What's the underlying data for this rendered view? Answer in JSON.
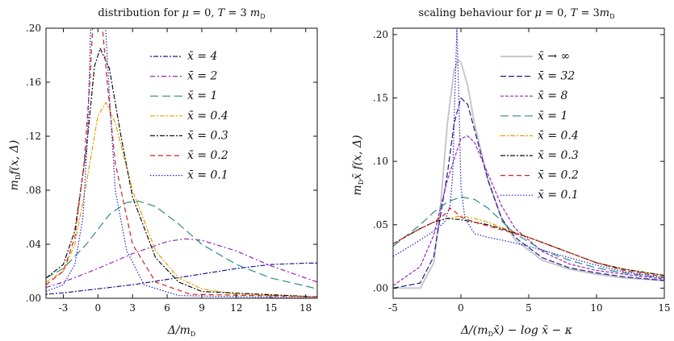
{
  "chart_data": [
    {
      "type": "line",
      "title": "distribution for μ = 0, T = 3 mD",
      "xlabel": "Δ/mD",
      "ylabel": "mD f(x, Δ)",
      "xlim": [
        -4.5,
        19
      ],
      "ylim": [
        0,
        0.2
      ],
      "xticks": [
        -3,
        0,
        3,
        6,
        9,
        12,
        15,
        18
      ],
      "yticks": [
        0.0,
        0.04,
        0.08,
        0.12,
        0.16,
        0.2
      ],
      "xtick_labels": [
        "-3",
        "0",
        "3",
        "6",
        "9",
        "12",
        "15",
        "18"
      ],
      "ytick_labels": [
        ".00",
        ".04",
        ".08",
        ".12",
        ".16",
        ".20"
      ],
      "legend_position": "top-right",
      "series": [
        {
          "name": "x̄ = 4",
          "color": "#1a1a8c",
          "dash": "2,2,6,2",
          "x": [
            -4.5,
            -3,
            0,
            3,
            6,
            9,
            12,
            15,
            18,
            19
          ],
          "y": [
            0.003,
            0.004,
            0.007,
            0.01,
            0.014,
            0.018,
            0.022,
            0.025,
            0.026,
            0.026
          ]
        },
        {
          "name": "x̄ = 2",
          "color": "#a020c0",
          "dash": "6,3,2,3",
          "x": [
            -4.5,
            -3,
            0,
            3,
            6,
            7.5,
            9,
            12,
            15,
            18,
            19
          ],
          "y": [
            0.008,
            0.012,
            0.022,
            0.033,
            0.042,
            0.044,
            0.043,
            0.035,
            0.024,
            0.015,
            0.012
          ]
        },
        {
          "name": "x̄ = 1",
          "color": "#2a8c8c",
          "dash": "10,5",
          "x": [
            -4.5,
            -3,
            -1,
            1,
            2.5,
            3.5,
            5,
            7,
            9,
            12,
            15,
            18,
            19
          ],
          "y": [
            0.015,
            0.022,
            0.04,
            0.062,
            0.071,
            0.072,
            0.068,
            0.055,
            0.04,
            0.025,
            0.015,
            0.009,
            0.007
          ]
        },
        {
          "name": "x̄ = 0.4",
          "color": "#e6a000",
          "dash": "6,2,2,2",
          "x": [
            -4.5,
            -3,
            -2,
            -1,
            0,
            0.7,
            1.5,
            3,
            5,
            7,
            9,
            12,
            19
          ],
          "y": [
            0.012,
            0.02,
            0.04,
            0.085,
            0.135,
            0.145,
            0.13,
            0.08,
            0.035,
            0.015,
            0.007,
            0.003,
            0.001
          ]
        },
        {
          "name": "x̄ = 0.3",
          "color": "#111111",
          "dash": "6,2,2,2",
          "x": [
            -4.5,
            -3,
            -2,
            -1,
            -0.3,
            0.2,
            1,
            2,
            3,
            5,
            7,
            9,
            19
          ],
          "y": [
            0.015,
            0.025,
            0.05,
            0.11,
            0.172,
            0.185,
            0.17,
            0.12,
            0.075,
            0.03,
            0.012,
            0.005,
            0.001
          ]
        },
        {
          "name": "x̄ = 0.2",
          "color": "#d42020",
          "dash": "6,4",
          "x": [
            -4.5,
            -3,
            -2,
            -1.2,
            -0.7,
            -0.4,
            0.3,
            0.8,
            1.5,
            3,
            5,
            8,
            19
          ],
          "y": [
            0.01,
            0.02,
            0.045,
            0.1,
            0.16,
            0.21,
            0.21,
            0.16,
            0.1,
            0.04,
            0.012,
            0.003,
            0.001
          ]
        },
        {
          "name": "x̄ = 0.1",
          "color": "#2020d0",
          "dash": "1.5,2",
          "x": [
            -4.5,
            -3,
            -2,
            -1.3,
            -0.9,
            -0.6,
            0.6,
            1,
            1.5,
            2.5,
            4,
            7,
            19
          ],
          "y": [
            0.005,
            0.01,
            0.025,
            0.06,
            0.12,
            0.21,
            0.21,
            0.15,
            0.08,
            0.035,
            0.01,
            0.002,
            0.0
          ]
        }
      ]
    },
    {
      "type": "line",
      "title": "scaling behaviour for μ = 0, T = 3mD",
      "xlabel": "Δ/(mD x̄) − log x̄ − κ",
      "ylabel": "mD x̄ f(x, Δ)",
      "xlim": [
        -5,
        15
      ],
      "ylim": [
        -0.008,
        0.205
      ],
      "xticks": [
        -5,
        0,
        5,
        10,
        15
      ],
      "yticks": [
        0.0,
        0.05,
        0.1,
        0.15,
        0.2
      ],
      "xtick_labels": [
        "-5",
        "0",
        "5",
        "10",
        "15"
      ],
      "ytick_labels": [
        ".00",
        ".05",
        ".10",
        ".15",
        ".20"
      ],
      "legend_position": "top-right",
      "series": [
        {
          "name": "x̄ → ∞",
          "color": "#c8c8c8",
          "dash": "",
          "x": [
            -5,
            -3,
            -2,
            -1.5,
            -1,
            -0.5,
            -0.2,
            0,
            0.5,
            1,
            2,
            3,
            4,
            6,
            8,
            10,
            12,
            15
          ],
          "y": [
            0.0,
            0.0,
            0.02,
            0.065,
            0.13,
            0.172,
            0.18,
            0.178,
            0.16,
            0.13,
            0.085,
            0.055,
            0.038,
            0.022,
            0.015,
            0.011,
            0.008,
            0.006
          ]
        },
        {
          "name": "x̄ = 32",
          "color": "#1a1a8c",
          "dash": "7,3",
          "x": [
            -5,
            -3,
            -2,
            -1,
            -0.5,
            0,
            0.5,
            1,
            2,
            3,
            4,
            6,
            8,
            10,
            12,
            15
          ],
          "y": [
            0.0,
            0.004,
            0.025,
            0.09,
            0.13,
            0.15,
            0.145,
            0.125,
            0.085,
            0.055,
            0.04,
            0.024,
            0.016,
            0.012,
            0.009,
            0.006
          ]
        },
        {
          "name": "x̄ = 8",
          "color": "#a020c0",
          "dash": "4,2",
          "x": [
            -5,
            -3,
            -2,
            -1,
            0,
            0.5,
            1,
            2,
            3,
            4,
            6,
            8,
            10,
            12,
            15
          ],
          "y": [
            0.002,
            0.017,
            0.042,
            0.085,
            0.118,
            0.12,
            0.115,
            0.09,
            0.065,
            0.047,
            0.029,
            0.019,
            0.014,
            0.011,
            0.007
          ]
        },
        {
          "name": "x̄ = 1",
          "color": "#2a8c8c",
          "dash": "10,5",
          "x": [
            -5,
            -3,
            -2,
            -1,
            0,
            1,
            2,
            3,
            4,
            6,
            8,
            10,
            12,
            15
          ],
          "y": [
            0.033,
            0.05,
            0.06,
            0.068,
            0.072,
            0.07,
            0.063,
            0.053,
            0.043,
            0.03,
            0.022,
            0.016,
            0.012,
            0.008
          ]
        },
        {
          "name": "x̄ = 0.4",
          "color": "#e6a000",
          "dash": "6,2,2,2",
          "x": [
            -5,
            -3,
            -2,
            -1,
            0,
            1,
            2,
            3,
            5,
            8,
            10,
            12,
            15
          ],
          "y": [
            0.035,
            0.047,
            0.052,
            0.055,
            0.057,
            0.055,
            0.052,
            0.048,
            0.04,
            0.028,
            0.02,
            0.015,
            0.01
          ]
        },
        {
          "name": "x̄ = 0.3",
          "color": "#111111",
          "dash": "6,2,2,2",
          "x": [
            -5,
            -3,
            -2,
            -1,
            0,
            1,
            2,
            3,
            5,
            8,
            10,
            12,
            15
          ],
          "y": [
            0.035,
            0.047,
            0.052,
            0.055,
            0.054,
            0.052,
            0.05,
            0.047,
            0.04,
            0.028,
            0.02,
            0.015,
            0.01
          ]
        },
        {
          "name": "x̄ = 0.2",
          "color": "#d42020",
          "dash": "6,4",
          "x": [
            -5,
            -3,
            -2,
            -1.2,
            -0.8,
            -0.4,
            0,
            1,
            2,
            3,
            5,
            8,
            10,
            12,
            15
          ],
          "y": [
            0.035,
            0.047,
            0.052,
            0.058,
            0.063,
            0.06,
            0.056,
            0.052,
            0.049,
            0.046,
            0.04,
            0.028,
            0.02,
            0.014,
            0.009
          ]
        },
        {
          "name": "x̄ = 0.1",
          "color": "#2020d0",
          "dash": "1.5,2",
          "x": [
            -5,
            -3,
            -2,
            -1.2,
            -0.8,
            -0.6,
            -0.45,
            -0.3,
            -0.15,
            0,
            0.3,
            1,
            2,
            3,
            5,
            8,
            10,
            12,
            15
          ],
          "y": [
            0.025,
            0.038,
            0.045,
            0.052,
            0.065,
            0.09,
            0.15,
            0.205,
            0.15,
            0.08,
            0.055,
            0.043,
            0.04,
            0.038,
            0.033,
            0.024,
            0.018,
            0.013,
            0.008
          ]
        }
      ]
    }
  ]
}
